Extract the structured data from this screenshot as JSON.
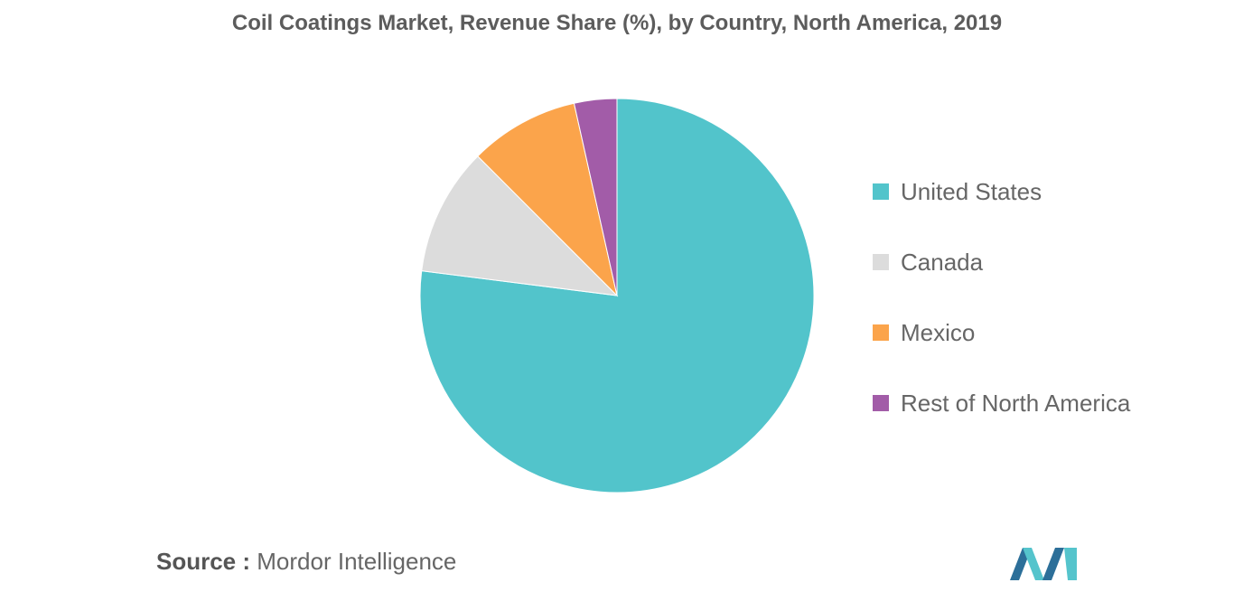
{
  "header": {
    "title": "Coil Coatings Market, Revenue Share (%), by Country, North America, 2019"
  },
  "chart_data": {
    "type": "pie",
    "title": "Coil Coatings Market, Revenue Share (%), by Country, North America, 2019",
    "start_angle_deg": 0,
    "direction": "clockwise",
    "legend_position": "right",
    "slices": [
      {
        "label": "United States",
        "value": 77,
        "color": "#52c4cb"
      },
      {
        "label": "Canada",
        "value": 10.5,
        "color": "#dcdcdc"
      },
      {
        "label": "Mexico",
        "value": 9,
        "color": "#fba44b"
      },
      {
        "label": "Rest of North America",
        "value": 3.5,
        "color": "#a25ca8"
      }
    ]
  },
  "footer": {
    "source_key": "Source :",
    "source_value": "Mordor Intelligence"
  },
  "logo": {
    "icon": "mordor-intelligence-logo",
    "colors": [
      "#2c6f99",
      "#55c4cc"
    ]
  }
}
